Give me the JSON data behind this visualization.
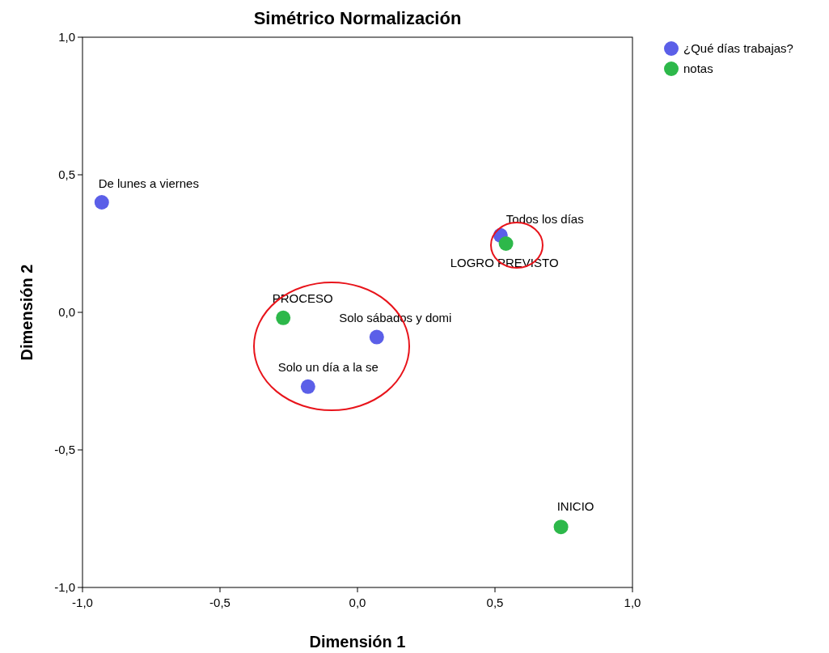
{
  "chart_data": {
    "type": "scatter",
    "title": "Simétrico Normalización",
    "xlabel": "Dimensión 1",
    "ylabel": "Dimensión 2",
    "series": [
      {
        "name": "¿Qué días trabajas?",
        "color": "#5b5fe8",
        "x": [
          -0.93,
          0.52,
          0.07,
          -0.18
        ],
        "values": [
          0.4,
          0.28,
          -0.09,
          -0.27
        ]
      },
      {
        "name": "notas",
        "color": "#2db84a",
        "x": [
          0.54,
          -0.27,
          0.74
        ],
        "values": [
          0.25,
          -0.02,
          -0.78
        ]
      }
    ],
    "annotations": [
      {
        "text": "De lunes a viernes",
        "x": -0.93,
        "y": 0.4
      },
      {
        "text": "Todos los días",
        "x": 0.52,
        "y": 0.28
      },
      {
        "text": "LOGRO PREVISTO",
        "x": 0.54,
        "y": 0.25
      },
      {
        "text": "PROCESO",
        "x": -0.27,
        "y": -0.02
      },
      {
        "text": "Solo sábados y domi",
        "x": 0.07,
        "y": -0.09
      },
      {
        "text": "Solo un día a la se",
        "x": -0.18,
        "y": -0.27
      },
      {
        "text": "INICIO",
        "x": 0.74,
        "y": -0.78
      }
    ],
    "xlim": [
      -1,
      1
    ],
    "ylim": [
      -1,
      1
    ],
    "xticks": [
      {
        "value": -1,
        "label": "-1,0"
      },
      {
        "value": -0.5,
        "label": "-0,5"
      },
      {
        "value": 0,
        "label": "0,0"
      },
      {
        "value": 0.5,
        "label": "0,5"
      },
      {
        "value": 1,
        "label": "1,0"
      }
    ],
    "yticks": [
      {
        "value": -1,
        "label": "-1,0"
      },
      {
        "value": -0.5,
        "label": "-0,5"
      },
      {
        "value": 0,
        "label": "0,0"
      },
      {
        "value": 0.5,
        "label": "0,5"
      },
      {
        "value": 1,
        "label": "1,0"
      }
    ],
    "marker": "circle",
    "grid": false,
    "legend": "top right"
  }
}
